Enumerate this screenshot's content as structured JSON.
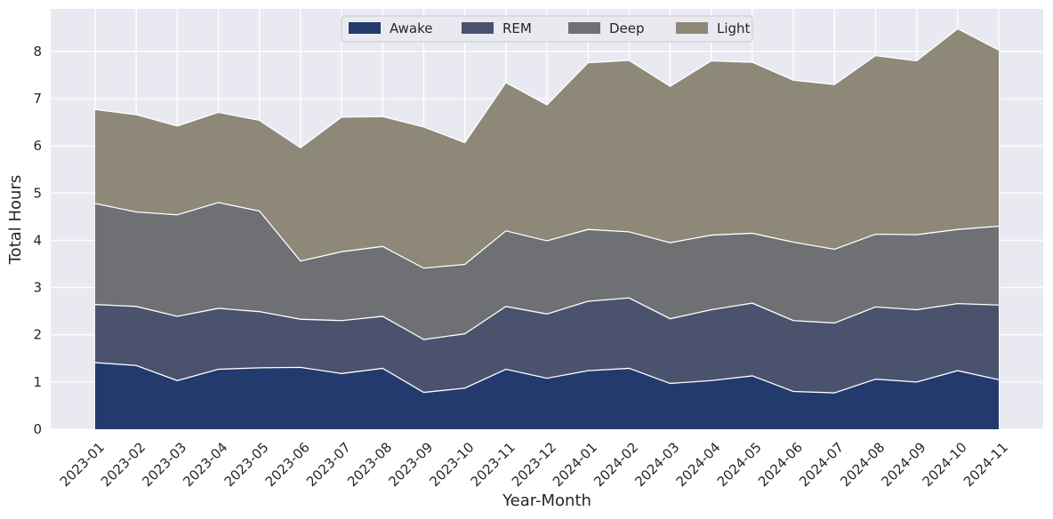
{
  "chart_data": {
    "type": "area",
    "stacked": true,
    "title": "",
    "xlabel": "Year-Month",
    "ylabel": "Total Hours",
    "ylim": [
      0,
      8.9
    ],
    "yticks": [
      0,
      1,
      2,
      3,
      4,
      5,
      6,
      7,
      8
    ],
    "grid": true,
    "legend_position": "top-center",
    "categories": [
      "2023-01",
      "2023-02",
      "2023-03",
      "2023-04",
      "2023-05",
      "2023-06",
      "2023-07",
      "2023-08",
      "2023-09",
      "2023-10",
      "2023-11",
      "2023-12",
      "2024-01",
      "2024-02",
      "2024-03",
      "2024-04",
      "2024-05",
      "2024-06",
      "2024-07",
      "2024-08",
      "2024-09",
      "2024-10",
      "2024-11"
    ],
    "series": [
      {
        "name": "Awake",
        "color": "#223a6e",
        "values": [
          1.41,
          1.35,
          1.03,
          1.27,
          1.3,
          1.31,
          1.18,
          1.29,
          0.78,
          0.87,
          1.27,
          1.08,
          1.24,
          1.29,
          0.97,
          1.03,
          1.13,
          0.8,
          0.77,
          1.06,
          1.0,
          1.24,
          1.05
        ]
      },
      {
        "name": "REM",
        "color": "#4b526d",
        "values": [
          1.23,
          1.25,
          1.36,
          1.29,
          1.19,
          1.02,
          1.12,
          1.1,
          1.12,
          1.15,
          1.33,
          1.36,
          1.47,
          1.49,
          1.37,
          1.5,
          1.54,
          1.5,
          1.48,
          1.53,
          1.53,
          1.42,
          1.58
        ]
      },
      {
        "name": "Deep",
        "color": "#6e7073",
        "values": [
          2.14,
          2.0,
          2.15,
          2.24,
          2.13,
          1.23,
          1.46,
          1.48,
          1.51,
          1.47,
          1.6,
          1.55,
          1.52,
          1.4,
          1.61,
          1.58,
          1.48,
          1.66,
          1.56,
          1.54,
          1.59,
          1.57,
          1.67
        ]
      },
      {
        "name": "Light",
        "color": "#8d8877",
        "values": [
          1.99,
          2.06,
          1.88,
          1.91,
          1.92,
          2.4,
          2.85,
          2.75,
          2.99,
          2.58,
          3.14,
          2.88,
          3.53,
          3.63,
          3.31,
          3.69,
          3.62,
          3.43,
          3.49,
          3.78,
          3.68,
          4.25,
          3.73
        ]
      }
    ]
  }
}
